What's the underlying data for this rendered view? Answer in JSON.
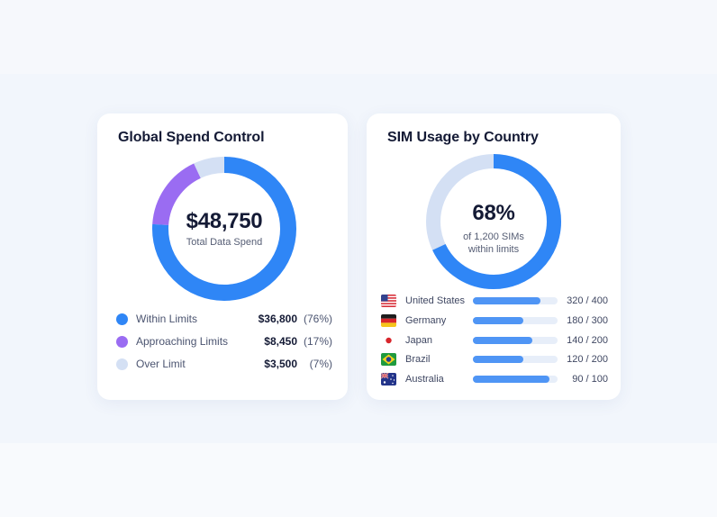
{
  "colors": {
    "within": "#2f86f6",
    "approaching": "#9a6cf2",
    "over": "#d4e0f4",
    "bar_fill": "#4f95f5",
    "bar_track": "#e7eef9"
  },
  "spend": {
    "title": "Global Spend Control",
    "total_value": "$48,750",
    "total_label": "Total Data Spend",
    "legend": [
      {
        "label": "Within Limits",
        "amount": "$36,800",
        "percent": "(76%)",
        "share": 0.76,
        "color_key": "within"
      },
      {
        "label": "Approaching Limits",
        "amount": "$8,450",
        "percent": "(17%)",
        "share": 0.17,
        "color_key": "approaching"
      },
      {
        "label": "Over Limit",
        "amount": "$3,500",
        "percent": "(7%)",
        "share": 0.07,
        "color_key": "over"
      }
    ]
  },
  "sim": {
    "title": "SIM Usage by Country",
    "percent_value": "68%",
    "percent_share": 0.68,
    "sub_line1": "of 1,200 SIMs",
    "sub_line2": "within limits",
    "countries": [
      {
        "name": "United States",
        "used": 320,
        "total": 400,
        "count": "320 / 400",
        "flag": "us-flag-icon"
      },
      {
        "name": "Germany",
        "used": 180,
        "total": 300,
        "count": "180 / 300",
        "flag": "germany-flag-icon"
      },
      {
        "name": "Japan",
        "used": 140,
        "total": 200,
        "count": "140 / 200",
        "flag": "japan-flag-icon"
      },
      {
        "name": "Brazil",
        "used": 120,
        "total": 200,
        "count": "120 / 200",
        "flag": "brazil-flag-icon"
      },
      {
        "name": "Australia",
        "used": 90,
        "total": 100,
        "count": "90 / 100",
        "flag": "australia-flag-icon"
      }
    ]
  }
}
